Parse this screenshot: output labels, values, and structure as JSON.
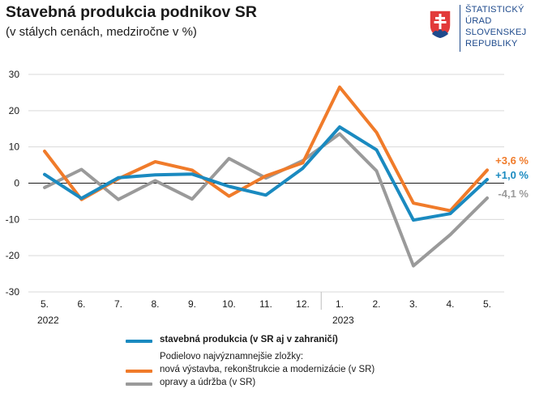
{
  "title": "Stavebná produkcia podnikov SR",
  "subtitle": "(v stálych cenách, medziročne v %)",
  "logo": {
    "lines": [
      "ŠTATISTICKÝ",
      "ÚRAD",
      "SLOVENSKEJ",
      "REPUBLIKY"
    ]
  },
  "legend": {
    "main_label": "stavebná produkcia (v SR aj v zahraničí)",
    "group_heading": "Podielovo najvýznamnejšie zložky:",
    "new_label": "nová výstavba, rekonštrukcie a modernizácie (v SR)",
    "repair_label": "opravy a údržba (v SR)"
  },
  "chart_data": {
    "type": "line",
    "categories": [
      "5.",
      "6.",
      "7.",
      "8.",
      "9.",
      "10.",
      "11.",
      "12.",
      "1.",
      "2.",
      "3.",
      "4.",
      "5."
    ],
    "year_labels": [
      {
        "label": "2022",
        "index": 0
      },
      {
        "label": "2023",
        "index": 8
      }
    ],
    "ylim": [
      -30,
      30
    ],
    "yticks": [
      -30,
      -20,
      -10,
      0,
      10,
      20,
      30
    ],
    "grid": true,
    "series": [
      {
        "name": "stavebná produkcia (v SR aj v zahraničí)",
        "color": "#1a8ac0",
        "values": [
          2.4,
          -4.2,
          1.5,
          2.3,
          2.5,
          -0.9,
          -3.3,
          4.1,
          15.5,
          9.2,
          -10.2,
          -8.4,
          1.0
        ],
        "end_label": "+1,0 %"
      },
      {
        "name": "nová výstavba, rekonštrukcie a modernizácie (v SR)",
        "color": "#f07b2a",
        "values": [
          8.8,
          -4.5,
          1.2,
          5.9,
          3.6,
          -3.6,
          2.0,
          5.6,
          26.5,
          14.0,
          -5.5,
          -7.6,
          3.6
        ],
        "end_label": "+3,6 %"
      },
      {
        "name": "opravy a údržba (v SR)",
        "color": "#9a9a9a",
        "values": [
          -1.2,
          3.8,
          -4.5,
          0.7,
          -4.4,
          6.8,
          1.4,
          6.2,
          13.6,
          3.4,
          -22.8,
          -14.2,
          -4.1
        ],
        "end_label": "-4,1 %"
      }
    ]
  }
}
